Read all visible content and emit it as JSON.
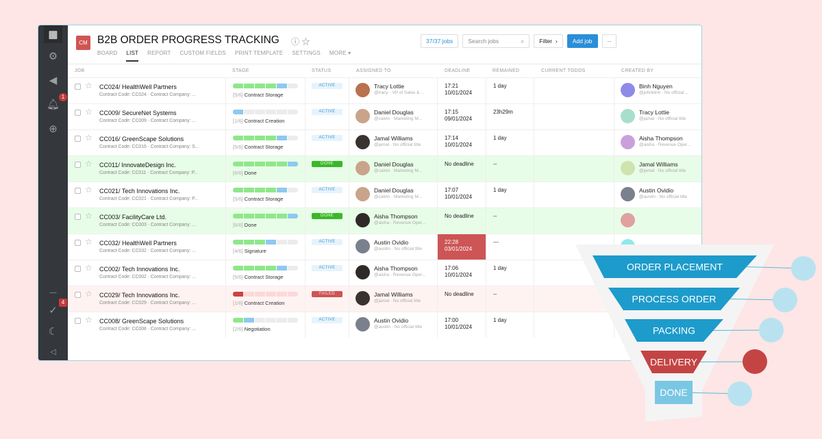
{
  "sidebar": {
    "notifications_badge": "1",
    "todos_badge": "4"
  },
  "header": {
    "logo": "CM",
    "title": "B2B ORDER PROGRESS TRACKING",
    "tabs": [
      "BOARD",
      "LIST",
      "REPORT",
      "CUSTOM FIELDS",
      "PRINT TEMPLATE",
      "SETTINGS",
      "MORE ▾"
    ],
    "active_tab": "LIST",
    "jobs_count": "37/37 jobs",
    "search_placeholder": "Search jobs",
    "filter": "Filter",
    "add_job": "Add job",
    "more": "··"
  },
  "columns": [
    "JOB",
    "STAGE",
    "STATUS",
    "ASSIGNED TO",
    "DEADLINE",
    "REMAINED",
    "CURRENT TODOS",
    "CREATED BY"
  ],
  "rows": [
    {
      "state": "active",
      "name": "CC024/ HealthWell Partners",
      "sub": "Contract Code: CC024 · Contract Company: ...",
      "stage_num": "[5/6]",
      "stage_step": 5,
      "stage": "Contract Storage",
      "status": "ACTIVE",
      "assignee": "Tracy Lottie",
      "assignee_sub": "@tracy · VP of Sales & ...",
      "av": "#b9714f",
      "deadline": [
        "17:21",
        "10/01/2024"
      ],
      "overdue": false,
      "remained": "1 day",
      "creator": "Binh Nguyen",
      "creator_sub": "@johnbinh · No official ...",
      "cav": "#8e8be8"
    },
    {
      "state": "active",
      "name": "CC009/ SecureNet Systems",
      "sub": "Contract Code: CC009 · Contract Company: ...",
      "stage_num": "[1/6]",
      "stage_step": 1,
      "stage": "Contract Creation",
      "status": "ACTIVE",
      "assignee": "Daniel Douglas",
      "assignee_sub": "@calvin · Marketing M...",
      "av": "#c9a48a",
      "deadline": [
        "17:15",
        "09/01/2024"
      ],
      "overdue": false,
      "remained": "23h29m",
      "creator": "Tracy Lottie",
      "creator_sub": "@jamal · No official title",
      "cav": "#a6e0cc"
    },
    {
      "state": "active",
      "name": "CC016/ GreenScape Solutions",
      "sub": "Contract Code: CC016 · Contract Company: S...",
      "stage_num": "[5/6]",
      "stage_step": 5,
      "stage": "Contract Storage",
      "status": "ACTIVE",
      "assignee": "Jamal Williams",
      "assignee_sub": "@jamal · No official title",
      "av": "#3a3230",
      "deadline": [
        "17:14",
        "10/01/2024"
      ],
      "overdue": false,
      "remained": "1 day",
      "creator": "Aisha Thompson",
      "creator_sub": "@aisha · Revenue Oper...",
      "cav": "#c9a0dc"
    },
    {
      "state": "done",
      "name": "CC011/ InnovateDesign Inc.",
      "sub": "Contract Code: CC011 · Contract Company: P...",
      "stage_num": "[6/6]",
      "stage_step": 6,
      "stage": "Done",
      "status": "DONE",
      "assignee": "Daniel Douglas",
      "assignee_sub": "@calvin · Marketing M...",
      "av": "#c9a48a",
      "deadline": [
        "No deadline"
      ],
      "overdue": false,
      "remained": "--",
      "creator": "Jamal Williams",
      "creator_sub": "@jamal · No official title",
      "cav": "#cfe3ae"
    },
    {
      "state": "active",
      "name": "CC021/ Tech Innovations Inc.",
      "sub": "Contract Code: CC021 · Contract Company: P...",
      "stage_num": "[5/6]",
      "stage_step": 5,
      "stage": "Contract Storage",
      "status": "ACTIVE",
      "assignee": "Daniel Douglas",
      "assignee_sub": "@calvin · Marketing M...",
      "av": "#c9a48a",
      "deadline": [
        "17:07",
        "10/01/2024"
      ],
      "overdue": false,
      "remained": "1 day",
      "creator": "Austin Ovidio",
      "creator_sub": "@austin · No official title",
      "cav": "#7a808c"
    },
    {
      "state": "done",
      "name": "CC003/ FacilityCare Ltd.",
      "sub": "Contract Code: CC003 · Contract Company: ...",
      "stage_num": "[6/6]",
      "stage_step": 6,
      "stage": "Done",
      "status": "DONE",
      "assignee": "Aisha Thompson",
      "assignee_sub": "@aisha · Revenue Oper...",
      "av": "#2f2a28",
      "deadline": [
        "No deadline"
      ],
      "overdue": false,
      "remained": "--",
      "creator": "",
      "creator_sub": "",
      "cav": "#e0a29f"
    },
    {
      "state": "active",
      "name": "CC032/ HealthWell Partners",
      "sub": "Contract Code: CC032 · Contract Company: ...",
      "stage_num": "[4/6]",
      "stage_step": 4,
      "stage": "Signature",
      "status": "ACTIVE",
      "assignee": "Austin Ovidio",
      "assignee_sub": "@austin · No official title",
      "av": "#7a808c",
      "deadline": [
        "22:28",
        "03/01/2024"
      ],
      "overdue": true,
      "remained": "---",
      "creator": "",
      "creator_sub": "",
      "cav": "#8eeaea"
    },
    {
      "state": "active",
      "name": "CC002/ Tech Innovations Inc.",
      "sub": "Contract Code: CC002 · Contract Company: ...",
      "stage_num": "[5/6]",
      "stage_step": 5,
      "stage": "Contract Storage",
      "status": "ACTIVE",
      "assignee": "Aisha Thompson",
      "assignee_sub": "@aisha · Revenue Oper...",
      "av": "#2f2a28",
      "deadline": [
        "17:06",
        "10/01/2024"
      ],
      "overdue": false,
      "remained": "1 day",
      "creator": "",
      "creator_sub": "",
      "cav": ""
    },
    {
      "state": "failed",
      "name": "CC029/ Tech Innovations Inc.",
      "sub": "Contract Code: CC029 · Contract Company: ...",
      "stage_num": "[1/6]",
      "stage_step": 1,
      "stage": "Contract Creation",
      "status": "FAILED",
      "assignee": "Jamal Williams",
      "assignee_sub": "@jamal · No official title",
      "av": "#3a3230",
      "deadline": [
        "No deadline"
      ],
      "overdue": false,
      "remained": "--",
      "creator": "",
      "creator_sub": "",
      "cav": ""
    },
    {
      "state": "active",
      "name": "CC008/ GreenScape Solutions",
      "sub": "Contract Code: CC008 · Contract Company: ...",
      "stage_num": "[2/6]",
      "stage_step": 2,
      "stage": "Negotiation",
      "status": "ACTIVE",
      "assignee": "Austin Ovidio",
      "assignee_sub": "@austin · No official title",
      "av": "#7a808c",
      "deadline": [
        "17:00",
        "10/01/2024"
      ],
      "overdue": false,
      "remained": "1 day",
      "creator": "",
      "creator_sub": "",
      "cav": ""
    }
  ],
  "funnel": {
    "stages": [
      {
        "label": "ORDER PLACEMENT",
        "color": "#1d9bcb"
      },
      {
        "label": "PROCESS ORDER",
        "color": "#1d9bcb"
      },
      {
        "label": "PACKING",
        "color": "#1d9bcb"
      },
      {
        "label": "DELIVERY",
        "color": "#c44444"
      },
      {
        "label": "DONE",
        "color": "#79c7e3"
      }
    ]
  }
}
